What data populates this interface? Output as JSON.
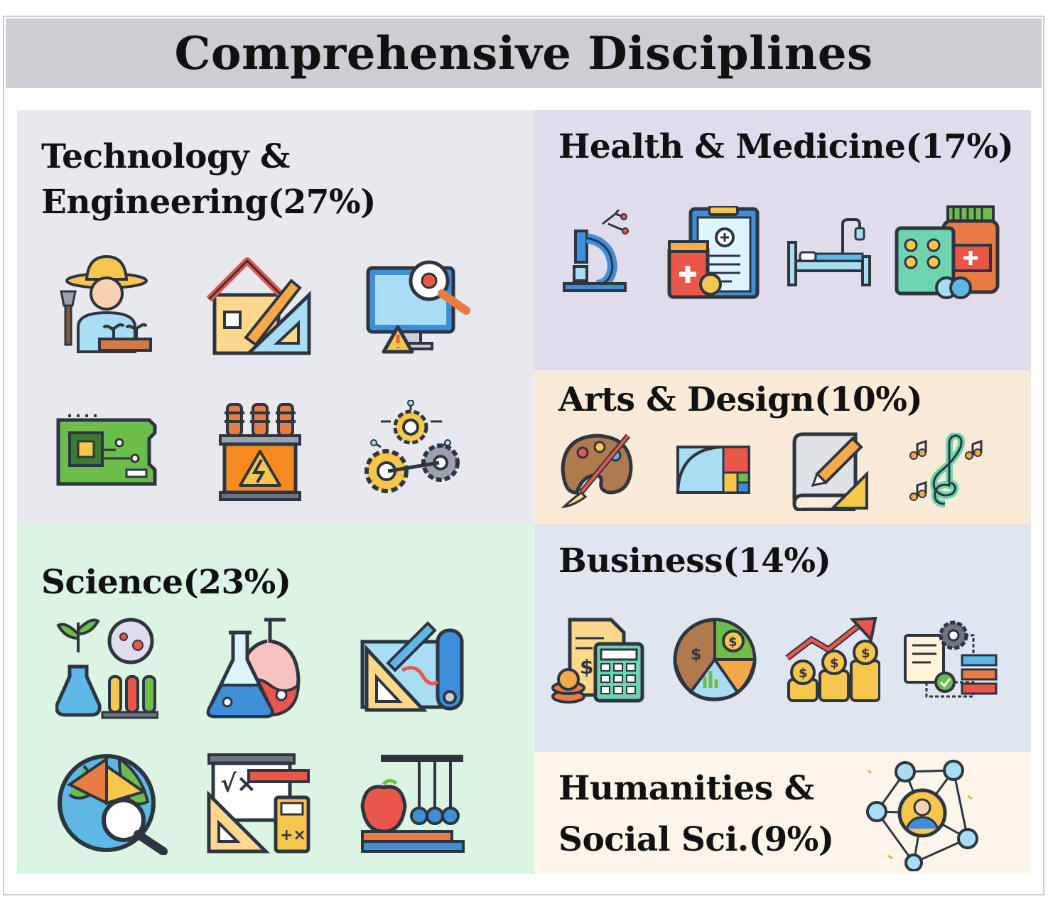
{
  "header": {
    "title": "Comprehensive Disciplines"
  },
  "panels": {
    "tech": {
      "title_line1": "Technology &",
      "title_line2": "Engineering(27%)",
      "share_percent": 27,
      "icons": [
        "farmer-icon",
        "architecture-icon",
        "software-bug-icon",
        "circuit-board-icon",
        "transformer-icon",
        "gears-icon"
      ]
    },
    "science": {
      "title": "Science(23%)",
      "share_percent": 23,
      "icons": [
        "biology-icon",
        "chemistry-flasks-icon",
        "blueprint-icon",
        "earth-science-icon",
        "mathematics-icon",
        "physics-newton-cradle-icon"
      ]
    },
    "health": {
      "title": "Health & Medicine(17%)",
      "share_percent": 17,
      "icons": [
        "microscope-icon",
        "medical-record-icon",
        "hospital-bed-icon",
        "pharmacy-pills-icon"
      ]
    },
    "arts": {
      "title": "Arts & Design(10%)",
      "share_percent": 10,
      "icons": [
        "paint-palette-icon",
        "golden-ratio-icon",
        "design-drawing-icon",
        "music-note-icon"
      ]
    },
    "business": {
      "title": "Business(14%)",
      "share_percent": 14,
      "icons": [
        "accounting-calculator-icon",
        "finance-pie-chart-icon",
        "growth-coins-icon",
        "workflow-icon"
      ]
    },
    "humanities": {
      "title_line1": "Humanities &",
      "title_line2": "Social Sci.(9%)",
      "share_percent": 9,
      "icons": [
        "social-network-icon"
      ]
    }
  }
}
